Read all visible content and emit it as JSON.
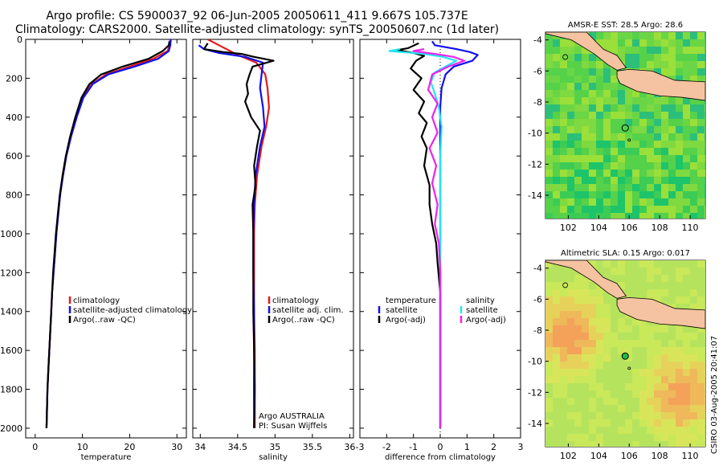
{
  "title": {
    "line1": "Argo profile: CS 5900037_92 06-Jun-2005 20050611_411 9.667S 105.737E",
    "line2": "Climatology: CARS2000. Satellite-adjusted climatology: synTS_20050607.nc (1d later)"
  },
  "stamp": "CSIRO 03-Aug-2005 20:41:07",
  "colors": {
    "red": "#e41a1c",
    "blue": "#1010ee",
    "black": "#000000",
    "cyan": "#22e5f0",
    "magenta": "#ee22ee"
  },
  "chart_data": [
    {
      "type": "line",
      "name": "temperature-profile",
      "xlabel": "temperature",
      "ylabel": "",
      "xlim": [
        -2,
        32
      ],
      "ylim": [
        2050,
        0
      ],
      "xticks": [
        0,
        10,
        20,
        30
      ],
      "yticks": [
        0,
        200,
        400,
        600,
        800,
        1000,
        1200,
        1400,
        1600,
        1800,
        2000
      ],
      "legend": [
        "climatology",
        "satellite-adjusted climatology",
        "Argo(..raw -QC)"
      ],
      "legend_position": "lower-middle",
      "series": [
        {
          "name": "climatology",
          "color": "red",
          "points": [
            [
              28.6,
              0
            ],
            [
              28.5,
              30
            ],
            [
              28,
              60
            ],
            [
              25,
              100
            ],
            [
              20,
              140
            ],
            [
              15,
              180
            ],
            [
              12,
              230
            ],
            [
              10,
              300
            ],
            [
              8.7,
              400
            ],
            [
              7.5,
              500
            ],
            [
              6.5,
              600
            ],
            [
              5.8,
              700
            ],
            [
              5.3,
              800
            ],
            [
              4.8,
              900
            ],
            [
              4.5,
              1000
            ],
            [
              4.2,
              1100
            ],
            [
              3.9,
              1200
            ],
            [
              3.6,
              1300
            ],
            [
              3.4,
              1400
            ],
            [
              3.2,
              1500
            ],
            [
              3.0,
              1600
            ],
            [
              2.8,
              1700
            ],
            [
              2.6,
              1800
            ],
            [
              2.5,
              1900
            ],
            [
              2.4,
              2000
            ]
          ]
        },
        {
          "name": "satellite-adjusted climatology",
          "color": "blue",
          "points": [
            [
              28.7,
              0
            ],
            [
              28.6,
              30
            ],
            [
              28.3,
              60
            ],
            [
              26,
              100
            ],
            [
              21,
              140
            ],
            [
              15.5,
              180
            ],
            [
              12.2,
              230
            ],
            [
              10.2,
              300
            ],
            [
              8.8,
              400
            ],
            [
              7.6,
              500
            ],
            [
              6.6,
              600
            ],
            [
              5.9,
              700
            ],
            [
              5.3,
              800
            ],
            [
              4.9,
              900
            ],
            [
              4.5,
              1000
            ],
            [
              4.2,
              1100
            ],
            [
              3.9,
              1200
            ],
            [
              3.6,
              1300
            ],
            [
              3.4,
              1400
            ],
            [
              3.2,
              1500
            ],
            [
              3.0,
              1600
            ],
            [
              2.8,
              1700
            ],
            [
              2.6,
              1800
            ],
            [
              2.5,
              1900
            ],
            [
              2.4,
              2000
            ]
          ]
        },
        {
          "name": "Argo(..raw -QC)",
          "color": "black",
          "points": [
            [
              28.4,
              10
            ],
            [
              28.3,
              30
            ],
            [
              27,
              60
            ],
            [
              24,
              100
            ],
            [
              18.5,
              140
            ],
            [
              14,
              180
            ],
            [
              11.5,
              230
            ],
            [
              9.8,
              300
            ],
            [
              8.5,
              400
            ],
            [
              7.4,
              500
            ],
            [
              6.5,
              600
            ],
            [
              5.8,
              700
            ],
            [
              5.2,
              800
            ],
            [
              4.8,
              900
            ],
            [
              4.4,
              1000
            ],
            [
              4.1,
              1100
            ],
            [
              3.8,
              1200
            ],
            [
              3.6,
              1300
            ],
            [
              3.4,
              1400
            ],
            [
              3.2,
              1500
            ],
            [
              3.0,
              1600
            ],
            [
              2.8,
              1700
            ],
            [
              2.6,
              1800
            ],
            [
              2.5,
              1900
            ],
            [
              2.4,
              2000
            ]
          ]
        }
      ]
    },
    {
      "type": "line",
      "name": "salinity-profile",
      "xlabel": "salinity",
      "ylabel": "",
      "xlim": [
        33.9,
        36.05
      ],
      "ylim": [
        2050,
        0
      ],
      "xticks": [
        34,
        34.5,
        35,
        35.5,
        36
      ],
      "xticklabels": [
        "34",
        "34.5",
        "35",
        "35.5",
        "36"
      ],
      "legend": [
        "climatology",
        "satellite adj. clim.",
        "Argo(..raw -QC)"
      ],
      "legend_position": "lower-middle",
      "annotations": [
        "Argo AUSTRALIA",
        "PI: Susan Wijffels"
      ],
      "series": [
        {
          "name": "climatology",
          "color": "red",
          "points": [
            [
              34.1,
              0
            ],
            [
              34.3,
              40
            ],
            [
              34.5,
              80
            ],
            [
              34.75,
              120
            ],
            [
              34.87,
              180
            ],
            [
              34.9,
              250
            ],
            [
              34.92,
              350
            ],
            [
              34.88,
              450
            ],
            [
              34.82,
              550
            ],
            [
              34.76,
              700
            ],
            [
              34.73,
              850
            ],
            [
              34.72,
              1000
            ],
            [
              34.72,
              1200
            ],
            [
              34.72,
              1400
            ],
            [
              34.73,
              1600
            ],
            [
              34.73,
              1800
            ],
            [
              34.73,
              2000
            ]
          ]
        },
        {
          "name": "satellite adj. clim.",
          "color": "blue",
          "points": [
            [
              33.98,
              30
            ],
            [
              34.05,
              50
            ],
            [
              34.25,
              70
            ],
            [
              34.6,
              90
            ],
            [
              34.84,
              120
            ],
            [
              34.82,
              180
            ],
            [
              34.8,
              250
            ],
            [
              34.84,
              350
            ],
            [
              34.86,
              450
            ],
            [
              34.8,
              550
            ],
            [
              34.74,
              700
            ],
            [
              34.72,
              850
            ],
            [
              34.71,
              1000
            ],
            [
              34.71,
              1200
            ],
            [
              34.72,
              1400
            ],
            [
              34.72,
              1600
            ],
            [
              34.73,
              1800
            ],
            [
              34.72,
              2000
            ]
          ]
        },
        {
          "name": "Argo(..raw -QC)",
          "color": "black",
          "points": [
            [
              34.1,
              20
            ],
            [
              34.05,
              50
            ],
            [
              34.3,
              65
            ],
            [
              34.55,
              75
            ],
            [
              34.72,
              90
            ],
            [
              34.98,
              110
            ],
            [
              34.7,
              140
            ],
            [
              34.66,
              180
            ],
            [
              34.62,
              230
            ],
            [
              34.64,
              280
            ],
            [
              34.6,
              320
            ],
            [
              34.68,
              400
            ],
            [
              34.8,
              470
            ],
            [
              34.76,
              550
            ],
            [
              34.72,
              650
            ],
            [
              34.74,
              750
            ],
            [
              34.7,
              850
            ],
            [
              34.71,
              1000
            ],
            [
              34.71,
              1200
            ],
            [
              34.71,
              1400
            ],
            [
              34.72,
              1600
            ],
            [
              34.72,
              1800
            ],
            [
              34.72,
              2000
            ]
          ]
        }
      ]
    },
    {
      "type": "line",
      "name": "difference-profile",
      "xlabel": "difference from climatology",
      "ylabel": "",
      "xlim": [
        -3,
        3
      ],
      "ylim": [
        2050,
        0
      ],
      "xticks": [
        -3,
        -2,
        -1,
        0,
        1,
        2,
        3
      ],
      "legend": [
        "temperature",
        "satellite",
        "Argo(-adj)",
        "salinity",
        "satellite",
        "Argo(-adj)"
      ],
      "legend_position": "lower-middle",
      "series": [
        {
          "name": "temperature satellite",
          "color": "blue",
          "points": [
            [
              -0.3,
              10
            ],
            [
              -0.2,
              30
            ],
            [
              0.6,
              50
            ],
            [
              1.1,
              65
            ],
            [
              1.4,
              80
            ],
            [
              1.2,
              110
            ],
            [
              0.5,
              140
            ],
            [
              0.2,
              180
            ],
            [
              0.05,
              250
            ],
            [
              0.0,
              350
            ],
            [
              0.0,
              500
            ],
            [
              0.0,
              700
            ],
            [
              0.0,
              1000
            ],
            [
              0.0,
              1500
            ],
            [
              0.0,
              2000
            ]
          ]
        },
        {
          "name": "temperature Argo(-adj)",
          "color": "black",
          "points": [
            [
              -0.8,
              20
            ],
            [
              -1.2,
              45
            ],
            [
              -1.6,
              55
            ],
            [
              -1.0,
              70
            ],
            [
              -0.6,
              85
            ],
            [
              -0.9,
              110
            ],
            [
              -1.1,
              150
            ],
            [
              -0.7,
              200
            ],
            [
              -1.0,
              260
            ],
            [
              -0.6,
              320
            ],
            [
              -0.8,
              380
            ],
            [
              -0.5,
              430
            ],
            [
              -0.7,
              500
            ],
            [
              -0.5,
              560
            ],
            [
              -0.6,
              650
            ],
            [
              -0.4,
              750
            ],
            [
              -0.4,
              850
            ],
            [
              -0.3,
              950
            ],
            [
              -0.15,
              1050
            ],
            [
              -0.1,
              1150
            ],
            [
              0.0,
              1300
            ],
            [
              0.0,
              1500
            ],
            [
              0.0,
              2000
            ]
          ]
        },
        {
          "name": "salinity satellite",
          "color": "cyan",
          "points": [
            [
              -1.5,
              50
            ],
            [
              -1.9,
              60
            ],
            [
              -0.6,
              75
            ],
            [
              0.1,
              90
            ],
            [
              0.6,
              110
            ],
            [
              0.2,
              140
            ],
            [
              -0.2,
              170
            ],
            [
              -0.35,
              220
            ],
            [
              -0.2,
              280
            ],
            [
              -0.05,
              350
            ],
            [
              0.05,
              450
            ],
            [
              0.0,
              600
            ],
            [
              0.0,
              800
            ],
            [
              0.0,
              1100
            ],
            [
              0.0,
              1500
            ],
            [
              0.0,
              2000
            ]
          ]
        },
        {
          "name": "salinity Argo(-adj)",
          "color": "magenta",
          "points": [
            [
              -0.6,
              50
            ],
            [
              -1.0,
              60
            ],
            [
              -0.2,
              75
            ],
            [
              0.5,
              90
            ],
            [
              0.9,
              110
            ],
            [
              0.3,
              140
            ],
            [
              -0.3,
              180
            ],
            [
              -0.45,
              260
            ],
            [
              -0.1,
              330
            ],
            [
              -0.3,
              400
            ],
            [
              -0.1,
              480
            ],
            [
              -0.4,
              560
            ],
            [
              -0.15,
              650
            ],
            [
              -0.3,
              740
            ],
            [
              -0.1,
              850
            ],
            [
              -0.2,
              950
            ],
            [
              -0.05,
              1050
            ],
            [
              0.0,
              1200
            ],
            [
              0.0,
              1500
            ],
            [
              0.0,
              2000
            ]
          ]
        }
      ]
    },
    {
      "type": "heatmap",
      "name": "sst-map",
      "title": "AMSR-E SST: 28.5 Argo: 28.6",
      "xlim": [
        100.5,
        111
      ],
      "ylim": [
        -15.5,
        -3.5
      ],
      "xticks": [
        102,
        104,
        106,
        108,
        110
      ],
      "yticks": [
        -4,
        -6,
        -8,
        -10,
        -12,
        -14
      ],
      "argo_position": [
        105.737,
        -9.667
      ]
    },
    {
      "type": "heatmap",
      "name": "sla-map",
      "title": "Altimetric SLA: 0.15 Argo: 0.017",
      "xlim": [
        100.5,
        111
      ],
      "ylim": [
        -15.5,
        -3.5
      ],
      "xticks": [
        102,
        104,
        106,
        108,
        110
      ],
      "yticks": [
        -4,
        -6,
        -8,
        -10,
        -12,
        -14
      ],
      "argo_position": [
        105.737,
        -9.667
      ]
    }
  ]
}
